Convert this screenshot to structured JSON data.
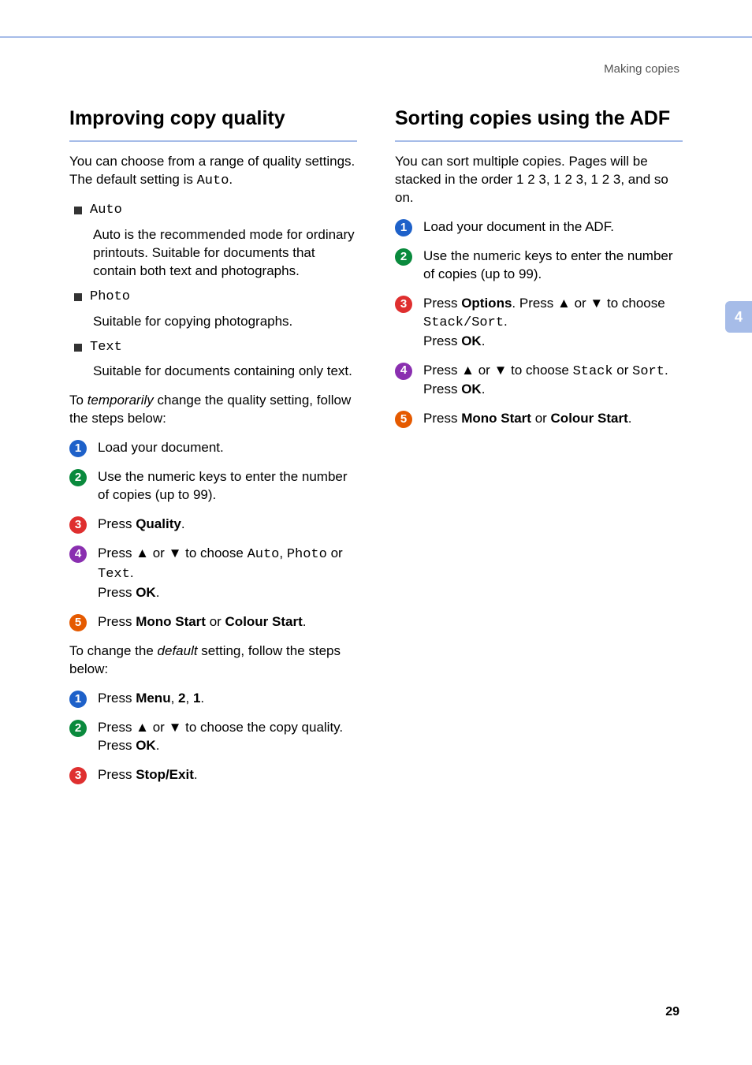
{
  "colors": {
    "accent_blue": "#a6bce8",
    "step1": "#1e61c9",
    "step2": "#0a8a3d",
    "step3": "#df2f2f",
    "step4": "#8a2fb0",
    "step5": "#e55a00"
  },
  "running_header": "Making copies",
  "left": {
    "heading": "Improving copy quality",
    "intro_pre": "You can choose from a range of quality settings. The default setting is ",
    "intro_mono": "Auto",
    "intro_post": ".",
    "bullets": [
      {
        "term": "Auto",
        "desc": "Auto is the recommended mode for ordinary printouts. Suitable for documents that contain both text and photographs."
      },
      {
        "term": "Photo",
        "desc": "Suitable for copying photographs."
      },
      {
        "term": "Text",
        "desc": "Suitable for documents containing only text."
      }
    ],
    "temp_pre": "To ",
    "temp_italic": "temporarily",
    "temp_post": " change the quality setting, follow the steps below:",
    "steps_a": {
      "s1": "Load your document.",
      "s2": "Use the numeric keys to enter the number of copies (up to 99).",
      "s3_pre": "Press ",
      "s3_bold": "Quality",
      "s3_post": ".",
      "s4_l1_pre": "Press ▲ or ▼ to choose ",
      "s4_l1_m1": "Auto",
      "s4_l1_sep1": ", ",
      "s4_l1_m2": "Photo",
      "s4_l1_sep2": " or ",
      "s4_l1_m3": "Text",
      "s4_l2_post": ".",
      "s4_l3_pre": "Press ",
      "s4_l3_bold": "OK",
      "s4_l3_post": ".",
      "s5_pre": "Press ",
      "s5_b1": "Mono Start",
      "s5_mid": " or ",
      "s5_b2": "Colour Start",
      "s5_post": "."
    },
    "default_pre": "To change the ",
    "default_italic": "default",
    "default_post": " setting, follow the steps below:",
    "steps_b": {
      "s1_pre": "Press ",
      "s1_b1": "Menu",
      "s1_mid1": ", ",
      "s1_b2": "2",
      "s1_mid2": ", ",
      "s1_b3": "1",
      "s1_post": ".",
      "s2_l1": "Press ▲ or ▼ to choose the copy quality.",
      "s2_l2_pre": "Press ",
      "s2_l2_bold": "OK",
      "s2_l2_post": ".",
      "s3_pre": "Press ",
      "s3_bold": "Stop/Exit",
      "s3_post": "."
    }
  },
  "right": {
    "heading": "Sorting copies using the ADF",
    "intro": "You can sort multiple copies. Pages will be stacked in the order 1 2 3, 1 2 3, 1 2 3, and so on.",
    "steps": {
      "s1": "Load your document in the ADF.",
      "s2": "Use the numeric keys to enter the number of copies (up to 99).",
      "s3_l1_pre": "Press ",
      "s3_l1_bold": "Options",
      "s3_l1_mid": ". Press ▲ or ▼ to choose ",
      "s3_l2_mono": "Stack/Sort",
      "s3_l2_post": ".",
      "s3_l3_pre": "Press ",
      "s3_l3_bold": "OK",
      "s3_l3_post": ".",
      "s4_l1_pre": "Press ▲ or ▼ to choose ",
      "s4_l1_m1": "Stack",
      "s4_l1_mid": " or ",
      "s4_l1_m2": "Sort",
      "s4_l1_post": ".",
      "s4_l2_pre": "Press ",
      "s4_l2_bold": "OK",
      "s4_l2_post": ".",
      "s5_pre": "Press ",
      "s5_b1": "Mono Start",
      "s5_mid": " or ",
      "s5_b2": "Colour Start",
      "s5_post": "."
    }
  },
  "tab_label": "4",
  "page_number": "29"
}
